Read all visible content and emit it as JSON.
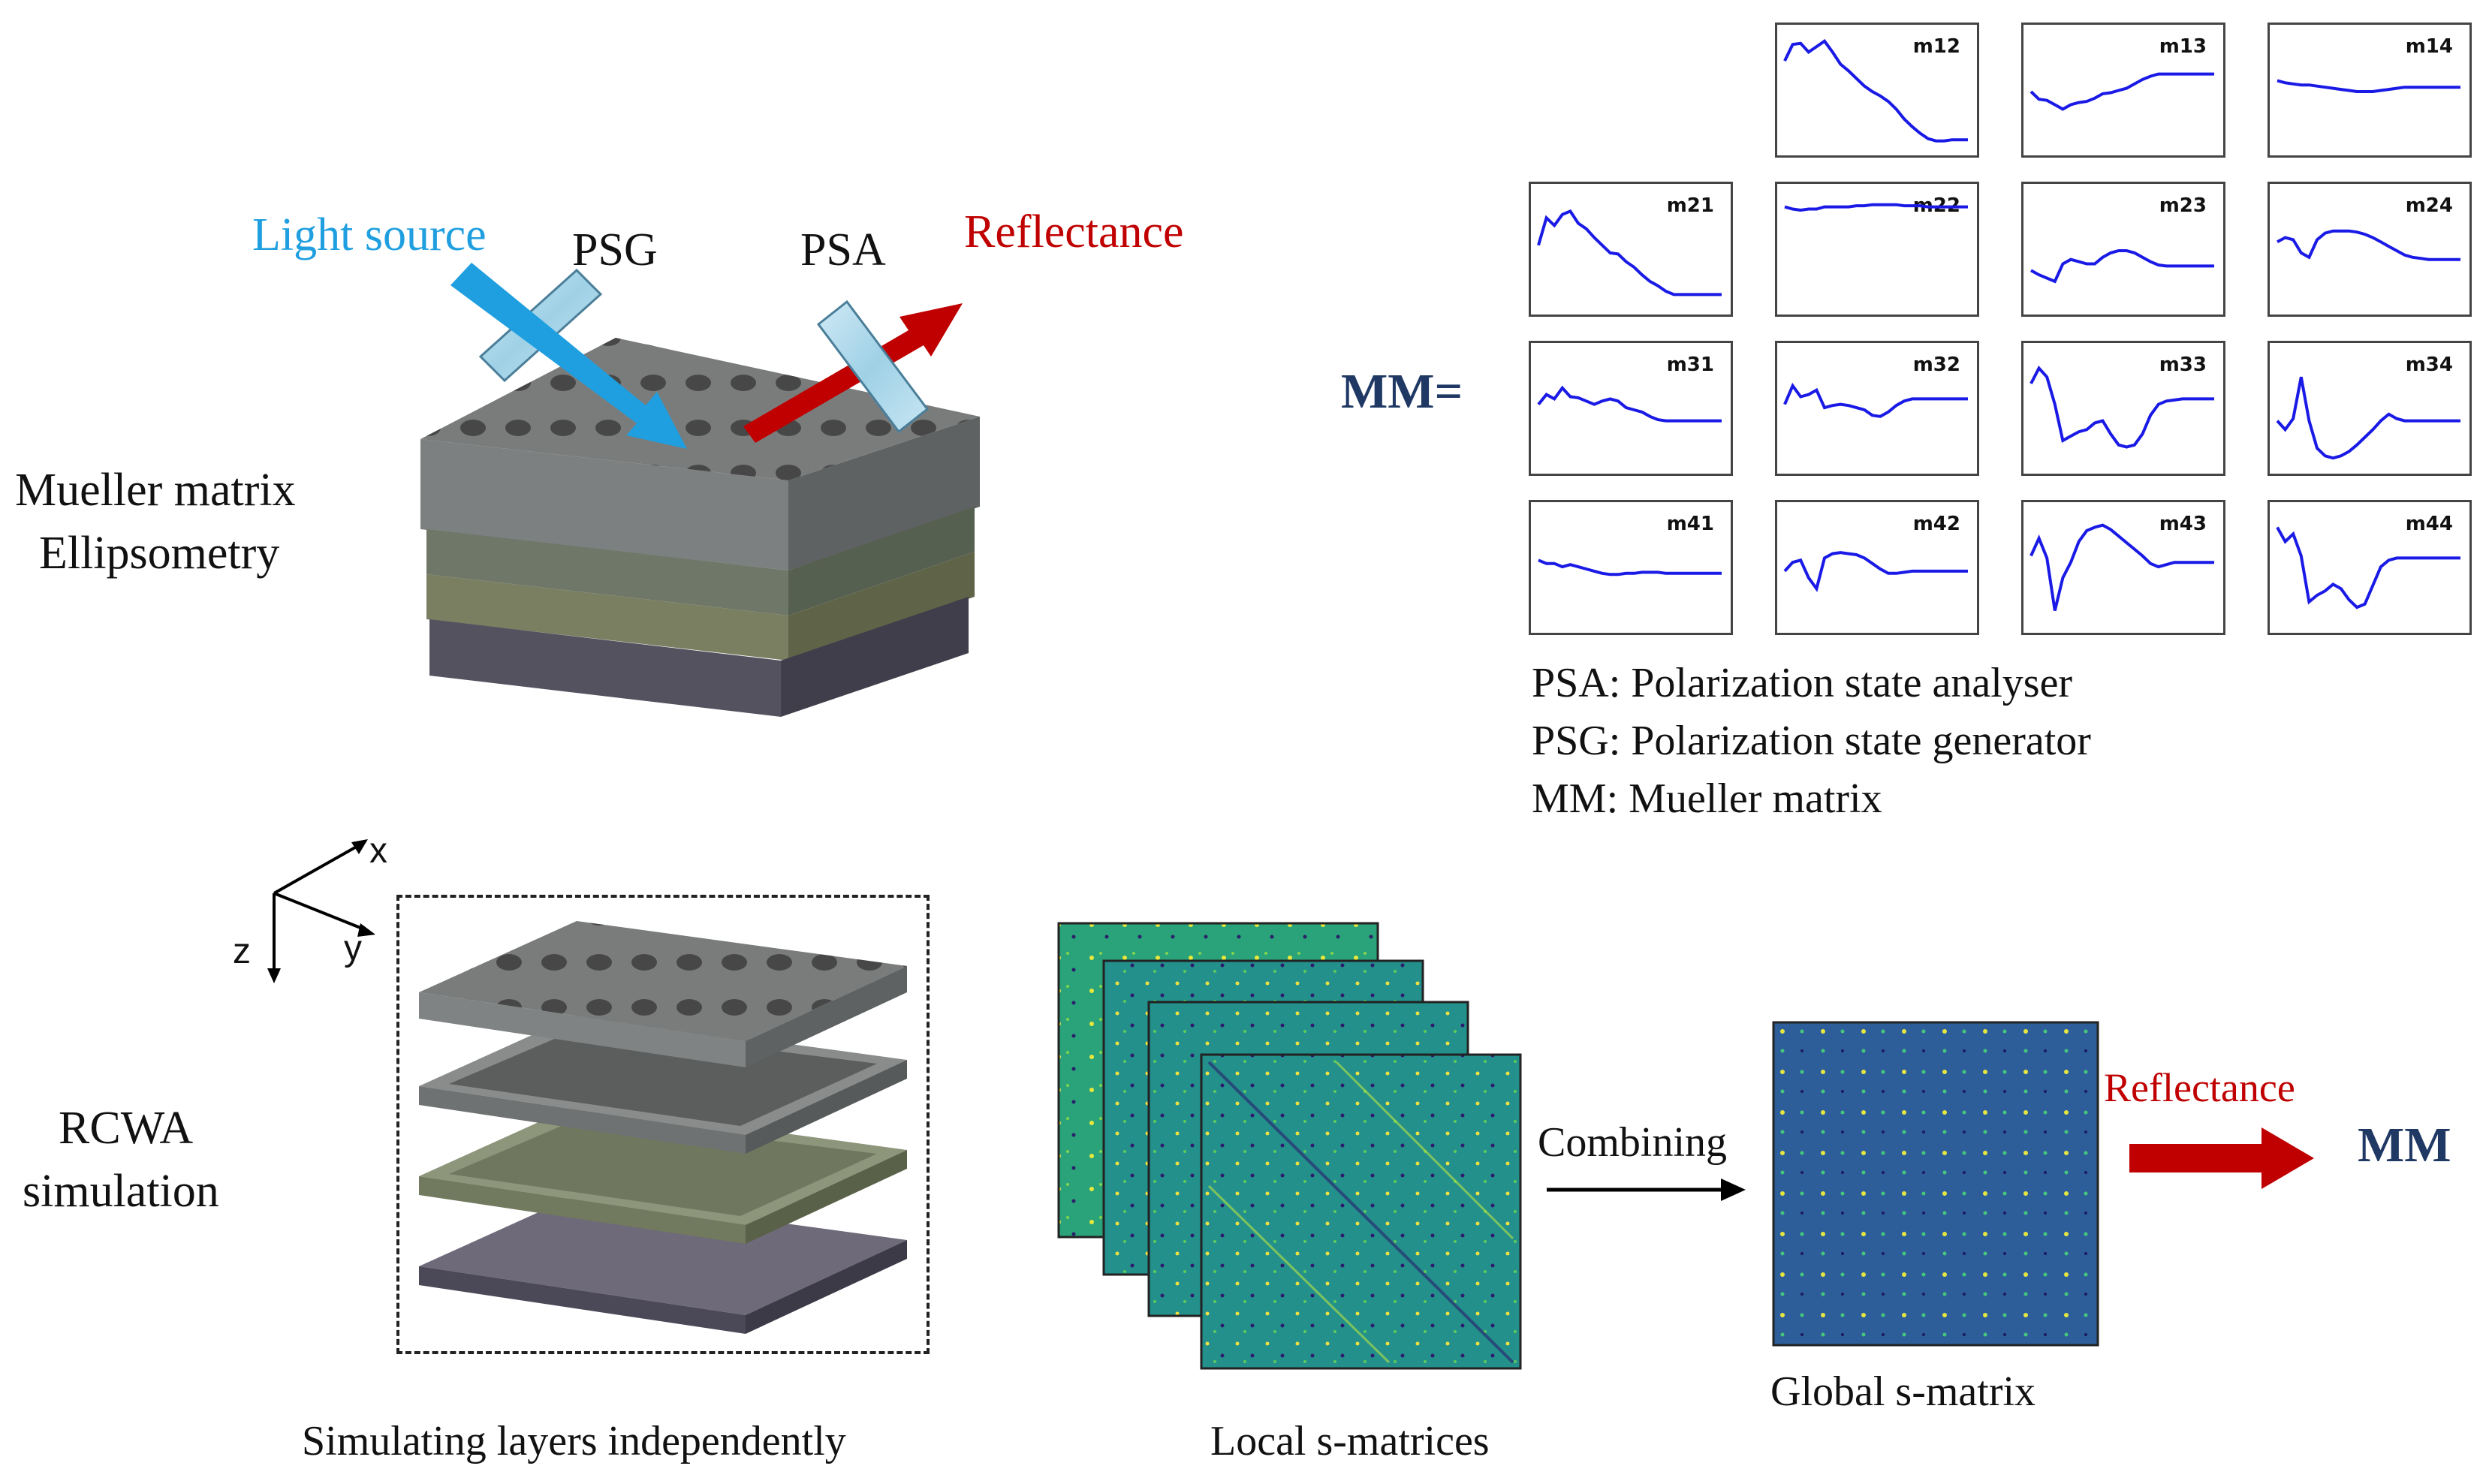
{
  "setup": {
    "light_source": "Light source",
    "psg": "PSG",
    "psa": "PSA",
    "reflectance": "Reflectance",
    "method_line1": "Mueller matrix",
    "method_line2": "Ellipsometry"
  },
  "matrix": {
    "label": "MM=",
    "cells": [
      {
        "id": "m11",
        "label": "",
        "empty": true,
        "values": []
      },
      {
        "id": "m12",
        "label": "m12",
        "values": [
          0.78,
          0.93,
          0.94,
          0.86,
          0.91,
          0.96,
          0.86,
          0.75,
          0.69,
          0.62,
          0.55,
          0.5,
          0.46,
          0.41,
          0.34,
          0.25,
          0.18,
          0.12,
          0.07,
          0.05,
          0.05,
          0.06,
          0.06,
          0.06
        ]
      },
      {
        "id": "m13",
        "label": "m13",
        "values": [
          0.5,
          0.43,
          0.42,
          0.38,
          0.34,
          0.38,
          0.4,
          0.41,
          0.44,
          0.48,
          0.49,
          0.51,
          0.53,
          0.57,
          0.61,
          0.64,
          0.66,
          0.66,
          0.66,
          0.66,
          0.66,
          0.66,
          0.66,
          0.66
        ]
      },
      {
        "id": "m14",
        "label": "m14",
        "values": [
          0.6,
          0.58,
          0.57,
          0.56,
          0.56,
          0.55,
          0.54,
          0.53,
          0.52,
          0.51,
          0.5,
          0.5,
          0.5,
          0.51,
          0.52,
          0.53,
          0.54,
          0.54,
          0.54,
          0.54,
          0.54,
          0.54,
          0.54,
          0.54
        ]
      },
      {
        "id": "m21",
        "label": "m21",
        "values": [
          0.55,
          0.8,
          0.73,
          0.83,
          0.86,
          0.75,
          0.7,
          0.62,
          0.55,
          0.48,
          0.47,
          0.4,
          0.35,
          0.28,
          0.22,
          0.18,
          0.13,
          0.1,
          0.1,
          0.1,
          0.1,
          0.1,
          0.1,
          0.1
        ]
      },
      {
        "id": "m22",
        "label": "m22",
        "values": [
          0.9,
          0.88,
          0.87,
          0.88,
          0.88,
          0.9,
          0.9,
          0.9,
          0.9,
          0.91,
          0.91,
          0.92,
          0.92,
          0.92,
          0.92,
          0.91,
          0.91,
          0.91,
          0.9,
          0.9,
          0.9,
          0.9,
          0.9,
          0.9
        ]
      },
      {
        "id": "m23",
        "label": "m23",
        "values": [
          0.32,
          0.28,
          0.25,
          0.22,
          0.38,
          0.42,
          0.4,
          0.38,
          0.38,
          0.44,
          0.48,
          0.5,
          0.5,
          0.48,
          0.44,
          0.4,
          0.37,
          0.36,
          0.36,
          0.36,
          0.36,
          0.36,
          0.36,
          0.36
        ]
      },
      {
        "id": "m24",
        "label": "m24",
        "values": [
          0.58,
          0.62,
          0.6,
          0.48,
          0.44,
          0.6,
          0.66,
          0.68,
          0.68,
          0.68,
          0.67,
          0.65,
          0.62,
          0.58,
          0.54,
          0.5,
          0.46,
          0.44,
          0.43,
          0.42,
          0.42,
          0.42,
          0.42,
          0.42
        ]
      },
      {
        "id": "m31",
        "label": "m31",
        "values": [
          0.55,
          0.64,
          0.6,
          0.7,
          0.62,
          0.61,
          0.58,
          0.55,
          0.58,
          0.6,
          0.58,
          0.52,
          0.5,
          0.48,
          0.44,
          0.41,
          0.4,
          0.4,
          0.4,
          0.4,
          0.4,
          0.4,
          0.4,
          0.4
        ]
      },
      {
        "id": "m32",
        "label": "m32",
        "values": [
          0.55,
          0.72,
          0.62,
          0.64,
          0.68,
          0.52,
          0.54,
          0.55,
          0.54,
          0.52,
          0.5,
          0.45,
          0.44,
          0.48,
          0.54,
          0.58,
          0.6,
          0.6,
          0.6,
          0.6,
          0.6,
          0.6,
          0.6,
          0.6
        ]
      },
      {
        "id": "m33",
        "label": "m33",
        "values": [
          0.74,
          0.88,
          0.8,
          0.55,
          0.22,
          0.26,
          0.3,
          0.32,
          0.38,
          0.4,
          0.28,
          0.18,
          0.16,
          0.18,
          0.28,
          0.45,
          0.55,
          0.58,
          0.59,
          0.6,
          0.6,
          0.6,
          0.6,
          0.6
        ]
      },
      {
        "id": "m34",
        "label": "m34",
        "values": [
          0.4,
          0.32,
          0.42,
          0.8,
          0.4,
          0.15,
          0.08,
          0.06,
          0.08,
          0.12,
          0.18,
          0.25,
          0.32,
          0.4,
          0.46,
          0.42,
          0.4,
          0.4,
          0.4,
          0.4,
          0.4,
          0.4,
          0.4,
          0.4
        ]
      },
      {
        "id": "m41",
        "label": "m41",
        "values": [
          0.58,
          0.55,
          0.55,
          0.52,
          0.54,
          0.52,
          0.5,
          0.48,
          0.46,
          0.45,
          0.45,
          0.46,
          0.46,
          0.47,
          0.47,
          0.47,
          0.46,
          0.46,
          0.46,
          0.46,
          0.46,
          0.46,
          0.46,
          0.46
        ]
      },
      {
        "id": "m42",
        "label": "m42",
        "values": [
          0.48,
          0.56,
          0.58,
          0.42,
          0.32,
          0.6,
          0.64,
          0.65,
          0.64,
          0.63,
          0.6,
          0.55,
          0.5,
          0.46,
          0.46,
          0.47,
          0.48,
          0.48,
          0.48,
          0.48,
          0.48,
          0.48,
          0.48,
          0.48
        ]
      },
      {
        "id": "m43",
        "label": "m43",
        "values": [
          0.62,
          0.78,
          0.6,
          0.12,
          0.42,
          0.56,
          0.75,
          0.85,
          0.88,
          0.9,
          0.86,
          0.8,
          0.74,
          0.68,
          0.62,
          0.55,
          0.52,
          0.54,
          0.56,
          0.56,
          0.56,
          0.56,
          0.56,
          0.56
        ]
      },
      {
        "id": "m44",
        "label": "m44",
        "values": [
          0.88,
          0.75,
          0.82,
          0.62,
          0.2,
          0.26,
          0.3,
          0.36,
          0.32,
          0.22,
          0.15,
          0.18,
          0.35,
          0.52,
          0.58,
          0.6,
          0.6,
          0.6,
          0.6,
          0.6,
          0.6,
          0.6,
          0.6,
          0.6
        ]
      }
    ]
  },
  "legend": {
    "psa": "PSA: Polarization state analyser",
    "psg": "PSG: Polarization state generator",
    "mm": "MM: Mueller matrix"
  },
  "axes": {
    "x": "x",
    "y": "y",
    "z": "z"
  },
  "rcwa": {
    "line1": "RCWA",
    "line2": "simulation",
    "layers_caption": "Simulating layers independently",
    "local_caption": "Local s-matrices",
    "combining": "Combining",
    "global_caption": "Global s-matrix",
    "reflectance": "Reflectance",
    "result": "MM"
  },
  "colors": {
    "light_blue": "#1f9fe0",
    "reflect_red": "#c00000",
    "mm_navy": "#1f3864",
    "curve_blue": "#1a1ae6"
  }
}
